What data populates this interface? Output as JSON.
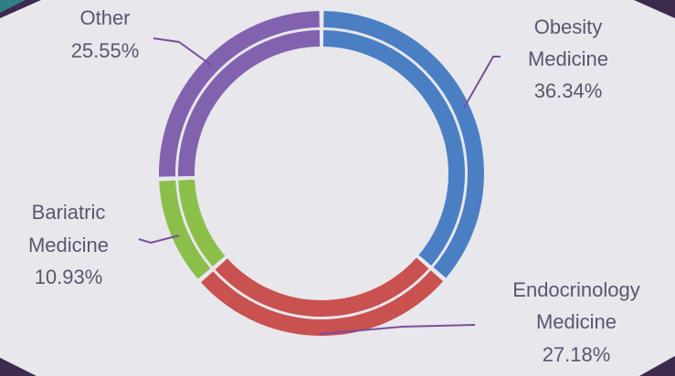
{
  "chart_data": {
    "type": "pie",
    "variant": "double-ring donut",
    "start": "top, clockwise",
    "slices": [
      {
        "label": [
          "Obesity",
          "Medicine"
        ],
        "percent_text": "36.34%",
        "value": 36.34,
        "color": "#4a7fc4"
      },
      {
        "label": [
          "Endocrinology",
          "Medicine"
        ],
        "percent_text": "27.18%",
        "value": 27.18,
        "color": "#c9514f"
      },
      {
        "label": [
          "Bariatric",
          "Medicine"
        ],
        "percent_text": "10.93%",
        "value": 10.93,
        "color": "#8bbf4a"
      },
      {
        "label": [
          "Other"
        ],
        "percent_text": "25.55%",
        "value": 25.55,
        "color": "#8262ae"
      }
    ],
    "leader_color": "#7a4f98",
    "panel_color": "#e8e7ec",
    "frame_color": "#3d2a4f"
  }
}
